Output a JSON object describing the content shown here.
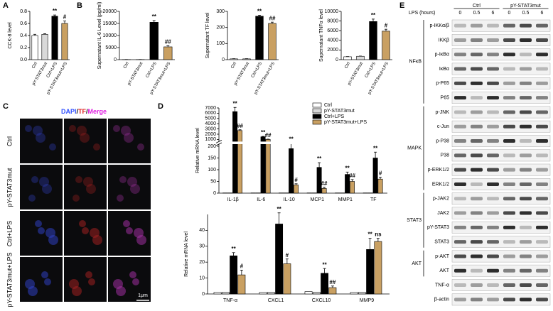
{
  "panel_labels": [
    "A",
    "B",
    "C",
    "D",
    "E"
  ],
  "chart_data": [
    {
      "type": "bar",
      "ylabel": "CCK-8 level",
      "categories": [
        "Ctrl",
        "pY-STAT3mut",
        "Ctrl+LPS",
        "pY-STAT3mut+LPS"
      ],
      "values": [
        0.4,
        0.42,
        0.72,
        0.6
      ],
      "errors": [
        0.02,
        0.01,
        0.02,
        0.04
      ],
      "annotations": [
        null,
        null,
        "**",
        "#"
      ],
      "colors": [
        "#ffffff",
        "#d9d9d9",
        "#000000",
        "#c9a062"
      ],
      "ylim": [
        0,
        0.8
      ],
      "yticks": [
        {
          "value": 0,
          "label": "0.0"
        },
        0.2,
        0.4,
        0.6,
        0.8
      ]
    },
    {
      "type": "bar",
      "ylabel": "Supernatant IL-6 Level (pg/ml)",
      "categories": [
        "Ctrl",
        "pY-STAT3mut",
        "Ctrl+LPS",
        "pY-STAT3mut+LPS"
      ],
      "values": [
        50,
        50,
        15500,
        5300
      ],
      "errors": [
        20,
        20,
        700,
        500
      ],
      "annotations": [
        null,
        null,
        "**",
        "##"
      ],
      "colors": [
        "#ffffff",
        "#d9d9d9",
        "#000000",
        "#c9a062"
      ],
      "ylim": [
        0,
        20000
      ],
      "yticks": [
        0,
        5000,
        10000,
        15000,
        20000
      ]
    },
    {
      "type": "bar",
      "ylabel": "Supernatant TF level",
      "categories": [
        "Ctrl",
        "pY-STAT3mut",
        "Ctrl+LPS",
        "pY-STAT3mut+LPS"
      ],
      "values": [
        5,
        5,
        270,
        225
      ],
      "errors": [
        1,
        1,
        6,
        8
      ],
      "annotations": [
        null,
        null,
        "**",
        "##"
      ],
      "colors": [
        "#ffffff",
        "#d9d9d9",
        "#000000",
        "#c9a062"
      ],
      "ylim": [
        0,
        300
      ],
      "yticks": [
        0,
        100,
        200,
        300
      ]
    },
    {
      "type": "bar",
      "ylabel": "Supernatant TNFα level",
      "categories": [
        "Ctrl",
        "pY-STAT3mut",
        "Ctrl+LPS",
        "pY-STAT3mut+LPS"
      ],
      "values": [
        600,
        700,
        7900,
        5900
      ],
      "errors": [
        40,
        40,
        500,
        400
      ],
      "annotations": [
        null,
        null,
        "**",
        "#"
      ],
      "colors": [
        "#ffffff",
        "#d9d9d9",
        "#000000",
        "#c9a062"
      ],
      "ylim": [
        0,
        10000
      ],
      "yticks": [
        0,
        2000,
        4000,
        6000,
        8000,
        10000
      ]
    },
    {
      "type": "grouped-bar",
      "ylabel": "Relative mRNA level",
      "categories": [
        "IL-1β",
        "IL-6",
        "IL-10",
        "MCP1",
        "MMP1",
        "TF"
      ],
      "ylim": [
        0,
        7000
      ],
      "ybreak": [
        200,
        1000
      ],
      "yticks": [
        0,
        50,
        100,
        150,
        200,
        1000,
        2000,
        3000,
        4000,
        5000,
        6000,
        7000
      ],
      "series": [
        {
          "name": "Ctrl",
          "color": "#ffffff",
          "values": [
            1,
            1,
            1,
            1,
            1,
            1
          ]
        },
        {
          "name": "pY-STAT3mut",
          "color": "#d9d9d9",
          "values": [
            1,
            1,
            1,
            1,
            1,
            1
          ]
        },
        {
          "name": "Ctrl+LPS",
          "color": "#000000",
          "values": [
            6300,
            1500,
            190,
            110,
            80,
            150
          ],
          "errors": [
            800,
            80,
            40,
            20,
            10,
            25
          ],
          "annotations": [
            "**",
            "**",
            "**",
            "**",
            "**",
            "**"
          ]
        },
        {
          "name": "pY-STAT3mut+LPS",
          "color": "#c9a062",
          "values": [
            2700,
            1000,
            35,
            20,
            50,
            60
          ],
          "errors": [
            150,
            60,
            5,
            5,
            8,
            8
          ],
          "annotations": [
            "##",
            "##",
            "#",
            "##",
            "##",
            "#"
          ]
        }
      ]
    },
    {
      "type": "grouped-bar",
      "ylabel": "Relative mRNA level",
      "categories": [
        "TNF-α",
        "CXCL1",
        "CXCL10",
        "MMP9"
      ],
      "ylim": [
        0,
        50
      ],
      "yticks": [
        0,
        10,
        20,
        30,
        40
      ],
      "series": [
        {
          "name": "Ctrl",
          "color": "#ffffff",
          "values": [
            1,
            1,
            1.5,
            1
          ]
        },
        {
          "name": "pY-STAT3mut",
          "color": "#d9d9d9",
          "values": [
            1,
            1,
            1,
            1
          ]
        },
        {
          "name": "Ctrl+LPS",
          "color": "#000000",
          "values": [
            24,
            44,
            13,
            28
          ],
          "errors": [
            2,
            7,
            3,
            7
          ],
          "annotations": [
            "**",
            "**",
            "**",
            "**"
          ]
        },
        {
          "name": "pY-STAT3mut+LPS",
          "color": "#c9a062",
          "values": [
            12,
            19,
            4,
            33
          ],
          "errors": [
            3,
            3,
            1,
            2
          ],
          "annotations": [
            "#",
            "#",
            "##",
            "ns"
          ]
        }
      ]
    }
  ],
  "microscopy": {
    "channels": [
      "DAPI",
      "/",
      "TF",
      "/",
      "Merge"
    ],
    "rows": [
      "Ctrl",
      "pY-STAT3mut",
      "Ctrl+LPS",
      "pY-STAT3mut+LPS"
    ],
    "scale": "1μm"
  },
  "blot": {
    "axis_label": "LPS (hours)",
    "groups": [
      "Ctrl",
      "pY-STAT3mut"
    ],
    "times": [
      "0",
      "0.5",
      "6",
      "0",
      "0.5",
      "6"
    ],
    "proteins": [
      "p-IKKα/β",
      "IKKβ",
      "p-IκBα",
      "IκBα",
      "p-P65",
      "P65",
      "p-JNK",
      "c-Jun",
      "p-P38",
      "P38",
      "p-ERK1/2",
      "ERK1/2",
      "p-JAK2",
      "JAK2",
      "pY-STAT3",
      "STAT3",
      "p-AKT",
      "AKT",
      "TNF-α",
      "β-actin"
    ],
    "pathways": [
      "NFκB",
      "MAPK",
      "STAT3",
      "AKT"
    ]
  }
}
